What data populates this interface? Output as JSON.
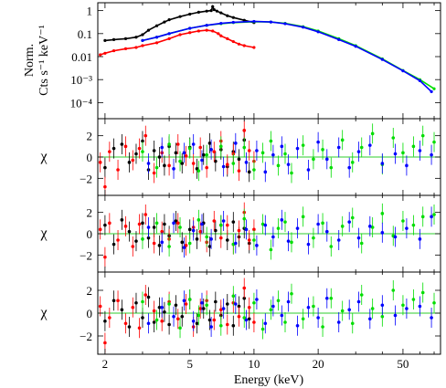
{
  "chart_data": [
    {
      "type": "line",
      "panel": "spectrum",
      "ylabel_lines": [
        "Norm.",
        "Cts s⁻¹ keV⁻¹"
      ],
      "xscale": "log",
      "yscale": "log",
      "xlim": [
        1.85,
        75
      ],
      "ylim": [
        2e-05,
        2.2
      ],
      "ytick_values": [
        1,
        0.1,
        0.01,
        0.001,
        0.0001
      ],
      "ytick_labels": [
        "1",
        "0.1",
        "0.01",
        "10⁻³",
        "10⁻⁴"
      ],
      "series": [
        {
          "color": "#000000",
          "x": [
            2.0,
            2.2,
            2.5,
            2.8,
            3.0,
            3.2,
            3.5,
            3.8,
            4.0,
            4.5,
            5.0,
            5.5,
            6.0,
            6.3,
            6.4,
            6.5,
            6.7,
            7.0,
            7.5,
            8.0,
            9.0,
            10.0
          ],
          "y": [
            0.05,
            0.055,
            0.06,
            0.07,
            0.09,
            0.14,
            0.22,
            0.32,
            0.4,
            0.55,
            0.7,
            0.85,
            0.95,
            1.0,
            1.5,
            1.1,
            0.95,
            0.8,
            0.6,
            0.5,
            0.38,
            0.3
          ]
        },
        {
          "color": "#ff0000",
          "x": [
            1.9,
            2.0,
            2.2,
            2.5,
            2.8,
            3.0,
            3.5,
            4.0,
            4.5,
            5.0,
            5.5,
            6.0,
            6.4,
            6.8,
            7.0,
            7.5,
            8.0,
            8.5,
            9.0,
            10.0
          ],
          "y": [
            0.012,
            0.014,
            0.018,
            0.022,
            0.025,
            0.03,
            0.04,
            0.06,
            0.09,
            0.11,
            0.13,
            0.14,
            0.13,
            0.1,
            0.08,
            0.06,
            0.045,
            0.035,
            0.03,
            0.025
          ]
        },
        {
          "color": "#00dd00",
          "x": [
            3.0,
            3.5,
            4.0,
            5.0,
            6.0,
            7.0,
            8.0,
            10.0,
            12.0,
            14.0,
            17.0,
            20.0,
            25.0,
            30.0,
            40.0,
            50.0,
            60.0,
            70.0
          ],
          "y": [
            0.05,
            0.07,
            0.1,
            0.17,
            0.23,
            0.27,
            0.3,
            0.33,
            0.32,
            0.28,
            0.2,
            0.13,
            0.06,
            0.03,
            0.008,
            0.0025,
            0.001,
            0.0004
          ]
        },
        {
          "color": "#0000ff",
          "x": [
            3.0,
            3.5,
            4.0,
            5.0,
            6.0,
            7.0,
            8.0,
            10.0,
            12.0,
            14.0,
            17.0,
            20.0,
            25.0,
            30.0,
            40.0,
            50.0,
            60.0,
            68.0
          ],
          "y": [
            0.05,
            0.07,
            0.1,
            0.17,
            0.23,
            0.28,
            0.31,
            0.34,
            0.32,
            0.27,
            0.19,
            0.12,
            0.055,
            0.028,
            0.0075,
            0.0024,
            0.0009,
            0.0003
          ]
        }
      ]
    },
    {
      "type": "scatter",
      "panel": "residuals-1",
      "ylabel": "χ",
      "xscale": "log",
      "xlim": [
        1.85,
        75
      ],
      "ylim": [
        -3.6,
        3.6
      ],
      "ytick_values": [
        2,
        0,
        -2
      ],
      "ytick_labels": [
        "2",
        "0",
        "−2"
      ],
      "series": [
        {
          "color": "#000000",
          "x": [
            2.0,
            2.2,
            2.4,
            2.6,
            2.8,
            3.0,
            3.2,
            3.4,
            3.6,
            3.8,
            4.0,
            4.3,
            4.6,
            5.0,
            5.4,
            5.8,
            6.2,
            6.6,
            7.0,
            7.5,
            8.0,
            8.5,
            9.0,
            9.5
          ],
          "y": [
            -1.0,
            0.8,
            1.2,
            -0.5,
            0.3,
            1.5,
            -1.2,
            0.6,
            0.0,
            -0.8,
            1.0,
            0.4,
            -0.6,
            0.9,
            -1.1,
            0.2,
            1.3,
            -0.4,
            0.7,
            -0.9,
            0.5,
            -0.2,
            1.6,
            -1.4
          ]
        },
        {
          "color": "#ff0000",
          "x": [
            1.9,
            2.0,
            2.1,
            2.3,
            2.5,
            2.7,
            2.9,
            3.1,
            3.4,
            3.7,
            4.0,
            4.4,
            4.8,
            5.2,
            5.6,
            6.0,
            6.5,
            7.0,
            7.5,
            8.0,
            8.5,
            9.0,
            9.5,
            10.0
          ],
          "y": [
            -0.5,
            -2.8,
            0.5,
            -1.2,
            1.0,
            -0.3,
            0.8,
            2.0,
            -1.5,
            0.4,
            -0.8,
            1.2,
            0.1,
            -0.6,
            0.9,
            -1.0,
            0.5,
            1.5,
            -0.7,
            0.3,
            -1.3,
            2.5,
            0.6,
            -0.4
          ]
        },
        {
          "color": "#00dd00",
          "x": [
            3.0,
            3.5,
            4.0,
            4.5,
            5.0,
            5.5,
            6.0,
            7.0,
            8.0,
            9.0,
            10.0,
            11.0,
            12.0,
            13.0,
            14.0,
            15.0,
            17.0,
            19.0,
            21.0,
            23.0,
            26.0,
            29.0,
            32.0,
            36.0,
            40.0,
            45.0,
            50.0,
            56.0,
            62.0,
            70.0
          ],
          "y": [
            0.5,
            -1.0,
            1.2,
            -0.4,
            0.8,
            -1.3,
            0.2,
            1.0,
            -0.6,
            0.9,
            -1.2,
            0.4,
            1.5,
            -0.8,
            0.3,
            -1.5,
            1.1,
            -0.2,
            0.7,
            -1.0,
            1.6,
            -0.5,
            0.9,
            2.2,
            -0.7,
            1.8,
            0.4,
            1.0,
            2.0,
            1.4
          ]
        },
        {
          "color": "#0000ff",
          "x": [
            3.2,
            3.7,
            4.2,
            4.7,
            5.2,
            5.7,
            6.3,
            7.2,
            8.2,
            9.2,
            10.3,
            11.3,
            12.3,
            13.5,
            14.5,
            16.0,
            18.0,
            20.0,
            22.0,
            25.0,
            28.0,
            31.0,
            35.0,
            40.0,
            46.0,
            52.0,
            60.0,
            68.0
          ],
          "y": [
            -0.6,
            0.9,
            -1.1,
            0.4,
            1.2,
            -0.3,
            0.7,
            -0.9,
            1.3,
            -0.5,
            0.6,
            -1.4,
            0.2,
            1.0,
            -0.7,
            0.8,
            -1.2,
            1.4,
            -0.2,
            0.9,
            -1.0,
            0.5,
            1.1,
            -0.6,
            0.3,
            -0.8,
            0.6,
            0.2
          ]
        }
      ]
    },
    {
      "type": "scatter",
      "panel": "residuals-2",
      "ylabel": "χ",
      "xscale": "log",
      "xlim": [
        1.85,
        75
      ],
      "ylim": [
        -3.6,
        3.6
      ],
      "ytick_values": [
        2,
        0,
        -2
      ],
      "ytick_labels": [
        "2",
        "0",
        "−2"
      ],
      "series": [
        {
          "color": "#000000",
          "x": [
            2.0,
            2.2,
            2.4,
            2.6,
            2.8,
            3.0,
            3.2,
            3.4,
            3.6,
            3.8,
            4.0,
            4.3,
            4.6,
            5.0,
            5.4,
            5.8,
            6.2,
            6.6,
            7.0,
            7.5,
            8.0,
            8.5,
            9.0,
            9.5
          ],
          "y": [
            0.8,
            -1.0,
            1.3,
            0.2,
            -0.7,
            1.0,
            -0.4,
            0.6,
            -1.1,
            0.9,
            -0.2,
            1.2,
            -0.8,
            0.4,
            -0.5,
            1.0,
            -1.2,
            0.3,
            0.8,
            -0.6,
            1.1,
            -0.3,
            0.5,
            -0.9
          ]
        },
        {
          "color": "#ff0000",
          "x": [
            1.9,
            2.0,
            2.1,
            2.3,
            2.5,
            2.7,
            2.9,
            3.1,
            3.4,
            3.7,
            4.0,
            4.4,
            4.8,
            5.2,
            5.6,
            6.0,
            6.5,
            7.0,
            7.5,
            8.0,
            8.5,
            9.0,
            9.5,
            10.0
          ],
          "y": [
            0.4,
            -2.2,
            1.0,
            -0.6,
            0.7,
            -1.2,
            0.9,
            1.8,
            -0.9,
            0.2,
            -0.5,
            1.0,
            -1.1,
            0.6,
            0.2,
            -0.8,
            1.2,
            -0.4,
            0.8,
            -1.0,
            0.3,
            2.0,
            -0.6,
            0.4
          ]
        },
        {
          "color": "#00dd00",
          "x": [
            3.0,
            3.5,
            4.0,
            4.5,
            5.0,
            5.5,
            6.0,
            7.0,
            8.0,
            9.0,
            10.0,
            11.0,
            12.0,
            13.0,
            14.0,
            15.0,
            17.0,
            19.0,
            21.0,
            23.0,
            26.0,
            29.0,
            32.0,
            36.0,
            40.0,
            45.0,
            50.0,
            56.0,
            62.0,
            70.0
          ],
          "y": [
            -0.5,
            1.0,
            -1.2,
            0.6,
            -0.9,
            1.3,
            -0.3,
            0.8,
            -1.0,
            1.4,
            -0.6,
            0.9,
            -1.5,
            0.5,
            1.1,
            -0.8,
            1.6,
            -0.4,
            1.0,
            -1.2,
            0.7,
            1.5,
            -0.9,
            0.6,
            1.9,
            -0.2,
            1.2,
            0.8,
            1.6,
            1.8
          ]
        },
        {
          "color": "#0000ff",
          "x": [
            3.2,
            3.7,
            4.2,
            4.7,
            5.2,
            5.7,
            6.3,
            7.2,
            8.2,
            9.2,
            10.3,
            11.3,
            12.3,
            13.5,
            14.5,
            16.0,
            18.0,
            20.0,
            22.0,
            25.0,
            28.0,
            31.0,
            35.0,
            40.0,
            46.0,
            52.0,
            60.0,
            68.0
          ],
          "y": [
            0.6,
            -0.8,
            1.0,
            -1.3,
            0.3,
            0.9,
            -0.5,
            1.2,
            -0.9,
            0.4,
            -1.1,
            0.8,
            -0.3,
            1.3,
            -0.7,
            0.5,
            -1.0,
            0.9,
            0.2,
            -0.6,
            1.1,
            -0.4,
            0.7,
            0.1,
            -0.3,
            0.5,
            -0.5,
            1.6
          ]
        }
      ]
    },
    {
      "type": "scatter",
      "panel": "residuals-3",
      "ylabel": "χ",
      "xscale": "log",
      "xlim": [
        1.85,
        75
      ],
      "ylim": [
        -3.6,
        3.6
      ],
      "ytick_values": [
        2,
        0,
        -2
      ],
      "ytick_labels": [
        "2",
        "0",
        "−2"
      ],
      "xticks": [
        2,
        5,
        10,
        20,
        50
      ],
      "xlabel": "Energy (keV)",
      "series": [
        {
          "color": "#000000",
          "x": [
            2.0,
            2.2,
            2.4,
            2.6,
            2.8,
            3.0,
            3.2,
            3.4,
            3.6,
            3.8,
            4.0,
            4.3,
            4.6,
            5.0,
            5.4,
            5.8,
            6.2,
            6.6,
            7.0,
            7.5,
            8.0,
            8.5,
            9.0,
            9.5
          ],
          "y": [
            -0.7,
            1.1,
            0.3,
            -1.2,
            0.9,
            -0.4,
            1.4,
            -0.8,
            0.5,
            0.1,
            -1.0,
            0.7,
            -0.3,
            1.2,
            -0.9,
            0.4,
            -0.6,
            1.0,
            -0.2,
            0.8,
            -1.1,
            0.6,
            1.3,
            -0.5
          ]
        },
        {
          "color": "#ff0000",
          "x": [
            1.9,
            2.0,
            2.1,
            2.3,
            2.5,
            2.7,
            2.9,
            3.1,
            3.4,
            3.7,
            4.0,
            4.4,
            4.8,
            5.2,
            5.6,
            6.0,
            6.5,
            7.0,
            7.5,
            8.0,
            8.5,
            9.0,
            9.5,
            10.0
          ],
          "y": [
            0.6,
            -2.6,
            -0.4,
            1.1,
            -0.9,
            0.5,
            -1.3,
            1.6,
            0.2,
            -0.7,
            1.0,
            -0.5,
            0.8,
            -1.2,
            0.4,
            1.1,
            -0.6,
            0.3,
            -1.0,
            0.9,
            -0.3,
            2.2,
            0.5,
            -0.8
          ]
        },
        {
          "color": "#00dd00",
          "x": [
            3.0,
            3.5,
            4.0,
            4.5,
            5.0,
            5.5,
            6.0,
            7.0,
            8.0,
            9.0,
            10.0,
            11.0,
            12.0,
            13.0,
            14.0,
            15.0,
            17.0,
            19.0,
            21.0,
            23.0,
            26.0,
            29.0,
            32.0,
            36.0,
            40.0,
            45.0,
            50.0,
            56.0,
            62.0,
            70.0
          ],
          "y": [
            1.0,
            -0.6,
            0.8,
            -1.3,
            1.2,
            -0.2,
            0.7,
            -1.1,
            1.5,
            -0.4,
            0.9,
            -1.4,
            0.3,
            1.1,
            -0.8,
            1.7,
            -0.5,
            0.6,
            -1.2,
            1.3,
            0.2,
            -0.9,
            1.6,
            0.4,
            -0.3,
            2.0,
            0.7,
            1.2,
            1.8,
            0.9
          ]
        },
        {
          "color": "#0000ff",
          "x": [
            3.2,
            3.7,
            4.2,
            4.7,
            5.2,
            5.7,
            6.3,
            7.2,
            8.2,
            9.2,
            10.3,
            11.3,
            12.3,
            13.5,
            14.5,
            16.0,
            18.0,
            20.0,
            22.0,
            25.0,
            28.0,
            31.0,
            35.0,
            40.0,
            46.0,
            52.0,
            60.0,
            68.0
          ],
          "y": [
            -0.9,
            0.5,
            -0.3,
            1.1,
            -0.7,
            0.9,
            -1.2,
            0.4,
            0.8,
            -0.6,
            1.2,
            -0.9,
            0.6,
            -0.2,
            1.0,
            -1.1,
            0.5,
            -0.4,
            1.3,
            -0.8,
            0.3,
            1.0,
            -0.5,
            0.7,
            -0.2,
            0.4,
            0.6,
            -0.4
          ]
        }
      ]
    }
  ]
}
